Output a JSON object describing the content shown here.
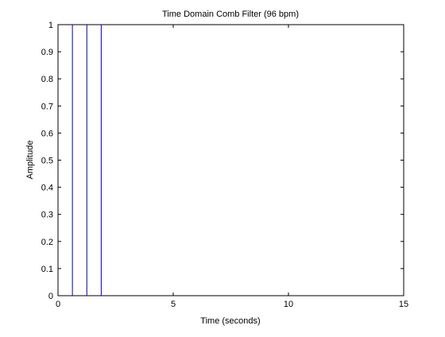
{
  "chart_data": {
    "type": "stem",
    "title": "Time Domain Comb Filter (96 bpm)",
    "xlabel": "Time (seconds)",
    "ylabel": "Amplitude",
    "xlim": [
      0,
      15
    ],
    "ylim": [
      0,
      1
    ],
    "xticks": [
      0,
      5,
      10,
      15
    ],
    "yticks": [
      0,
      0.1,
      0.2,
      0.3,
      0.4,
      0.5,
      0.6,
      0.7,
      0.8,
      0.9,
      1
    ],
    "grid": false,
    "legend": "none",
    "series": [
      {
        "color": "#0000aa",
        "x": [
          0.625,
          1.25,
          1.875
        ],
        "y": [
          1,
          1,
          1
        ]
      }
    ]
  }
}
